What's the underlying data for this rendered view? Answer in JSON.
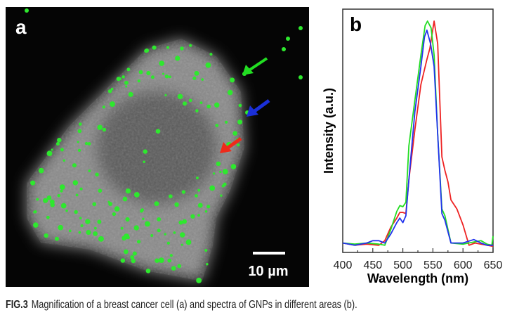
{
  "panel_a": {
    "label": "a",
    "scale_bar_label": "10 µm",
    "arrow_colors": [
      "#22dd22",
      "#1a2fd8",
      "#ee2a1a"
    ]
  },
  "caption": {
    "figure_label": "FIG.3",
    "text": "Magnification of a breast cancer cell (a) and spectra of GNPs in different areas (b)."
  },
  "chart_data": {
    "type": "line",
    "panel_label": "b",
    "xlabel": "Wavelength (nm)",
    "ylabel": "Intensity (a.u.)",
    "xlim": [
      400,
      650
    ],
    "ylim": [
      0,
      1.06
    ],
    "x_ticks": [
      "400",
      "450",
      "500",
      "550",
      "600",
      "650"
    ],
    "y_ticks": [],
    "grid": false,
    "legend": "none",
    "series": [
      {
        "name": "red",
        "color": "#ee2222",
        "points": [
          [
            400,
            0.02
          ],
          [
            420,
            0.01
          ],
          [
            440,
            0.015
          ],
          [
            460,
            0.01
          ],
          [
            470,
            0.03
          ],
          [
            480,
            0.09
          ],
          [
            490,
            0.13
          ],
          [
            495,
            0.155
          ],
          [
            500,
            0.155
          ],
          [
            505,
            0.15
          ],
          [
            510,
            0.3
          ],
          [
            520,
            0.52
          ],
          [
            530,
            0.72
          ],
          [
            540,
            0.83
          ],
          [
            545,
            0.88
          ],
          [
            552,
            1.0
          ],
          [
            558,
            0.9
          ],
          [
            565,
            0.4
          ],
          [
            570,
            0.34
          ],
          [
            575,
            0.29
          ],
          [
            580,
            0.21
          ],
          [
            590,
            0.17
          ],
          [
            600,
            0.1
          ],
          [
            610,
            0.01
          ],
          [
            620,
            0.02
          ],
          [
            630,
            0.015
          ],
          [
            640,
            0.01
          ],
          [
            650,
            0.005
          ]
        ]
      },
      {
        "name": "green",
        "color": "#22dd22",
        "points": [
          [
            400,
            0.02
          ],
          [
            420,
            0.015
          ],
          [
            440,
            0.02
          ],
          [
            460,
            0.015
          ],
          [
            470,
            0.01
          ],
          [
            480,
            0.08
          ],
          [
            490,
            0.16
          ],
          [
            495,
            0.185
          ],
          [
            500,
            0.18
          ],
          [
            505,
            0.2
          ],
          [
            510,
            0.45
          ],
          [
            520,
            0.65
          ],
          [
            530,
            0.85
          ],
          [
            537,
            0.98
          ],
          [
            541,
            1.0
          ],
          [
            547,
            0.97
          ],
          [
            552,
            0.85
          ],
          [
            558,
            0.5
          ],
          [
            565,
            0.17
          ],
          [
            570,
            0.14
          ],
          [
            575,
            0.08
          ],
          [
            580,
            0.02
          ],
          [
            600,
            0.015
          ],
          [
            620,
            0.025
          ],
          [
            630,
            0.03
          ],
          [
            640,
            0.015
          ],
          [
            648,
            0.01
          ],
          [
            650,
            0.05
          ]
        ]
      },
      {
        "name": "blue",
        "color": "#2233ee",
        "points": [
          [
            400,
            0.02
          ],
          [
            420,
            0.01
          ],
          [
            440,
            0.02
          ],
          [
            450,
            0.03
          ],
          [
            460,
            0.03
          ],
          [
            470,
            0.02
          ],
          [
            480,
            0.06
          ],
          [
            490,
            0.11
          ],
          [
            495,
            0.13
          ],
          [
            500,
            0.11
          ],
          [
            505,
            0.14
          ],
          [
            510,
            0.3
          ],
          [
            520,
            0.6
          ],
          [
            530,
            0.8
          ],
          [
            536,
            0.93
          ],
          [
            540,
            0.96
          ],
          [
            546,
            0.9
          ],
          [
            552,
            0.8
          ],
          [
            558,
            0.5
          ],
          [
            565,
            0.15
          ],
          [
            570,
            0.12
          ],
          [
            575,
            0.07
          ],
          [
            580,
            0.02
          ],
          [
            600,
            0.02
          ],
          [
            618,
            0.035
          ],
          [
            630,
            0.02
          ],
          [
            640,
            0.01
          ],
          [
            650,
            0.01
          ]
        ]
      }
    ]
  }
}
